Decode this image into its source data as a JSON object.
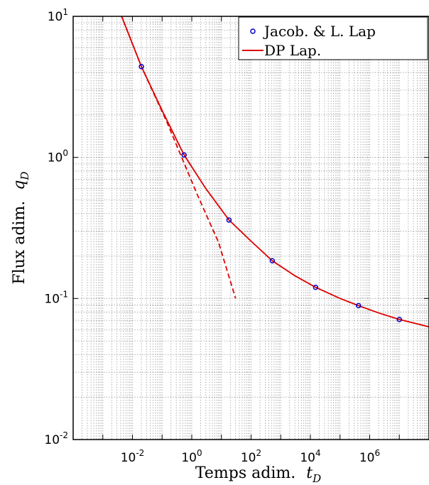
{
  "chart_data": {
    "type": "line",
    "xlabel": "Temps adim.",
    "xlabel_var": "t",
    "xlabel_sub": "D",
    "ylabel": "Flux adim.",
    "ylabel_var": "q",
    "ylabel_sub": "D",
    "xscale": "log",
    "yscale": "log",
    "xlim": [
      0.0001,
      100000000
    ],
    "ylim": [
      0.01,
      10
    ],
    "grid": true,
    "legend_position": "top-right",
    "x_ticks": [
      {
        "base": "10",
        "exp": "-2",
        "value": 0.01
      },
      {
        "base": "10",
        "exp": "0",
        "value": 1
      },
      {
        "base": "10",
        "exp": "2",
        "value": 100
      },
      {
        "base": "10",
        "exp": "4",
        "value": 10000
      },
      {
        "base": "10",
        "exp": "6",
        "value": 1000000
      }
    ],
    "y_ticks": [
      {
        "base": "10",
        "exp": "-2",
        "value": 0.01
      },
      {
        "base": "10",
        "exp": "-1",
        "value": 0.1
      },
      {
        "base": "10",
        "exp": "0",
        "value": 1
      },
      {
        "base": "10",
        "exp": "1",
        "value": 10
      }
    ],
    "series": [
      {
        "name": "Jacob. & L. Lap",
        "style": "markers",
        "marker": "circle",
        "color": "#0000cc",
        "points": [
          {
            "x": 0.02,
            "y": 4.4
          },
          {
            "x": 0.55,
            "y": 1.04
          },
          {
            "x": 18,
            "y": 0.36
          },
          {
            "x": 520,
            "y": 0.185
          },
          {
            "x": 15000,
            "y": 0.12
          },
          {
            "x": 420000,
            "y": 0.089
          },
          {
            "x": 10000000,
            "y": 0.071
          }
        ]
      },
      {
        "name": "DP Lap.",
        "style": "solid",
        "color": "#dd0000",
        "points": [
          {
            "x": 0.004,
            "y": 10.4
          },
          {
            "x": 0.02,
            "y": 4.4
          },
          {
            "x": 0.1,
            "y": 2.15
          },
          {
            "x": 0.55,
            "y": 1.04
          },
          {
            "x": 3,
            "y": 0.6
          },
          {
            "x": 18,
            "y": 0.36
          },
          {
            "x": 100,
            "y": 0.255
          },
          {
            "x": 520,
            "y": 0.185
          },
          {
            "x": 3000,
            "y": 0.145
          },
          {
            "x": 15000,
            "y": 0.12
          },
          {
            "x": 100000,
            "y": 0.1
          },
          {
            "x": 420000,
            "y": 0.089
          },
          {
            "x": 2000000,
            "y": 0.079
          },
          {
            "x": 10000000,
            "y": 0.071
          },
          {
            "x": 100000000,
            "y": 0.063
          }
        ]
      },
      {
        "name": "",
        "style": "dashed",
        "color": "#dd0000",
        "points": [
          {
            "x": 0.004,
            "y": 10.4
          },
          {
            "x": 0.02,
            "y": 4.4
          },
          {
            "x": 0.15,
            "y": 1.75
          },
          {
            "x": 1.5,
            "y": 0.55
          },
          {
            "x": 8,
            "y": 0.25
          },
          {
            "x": 30,
            "y": 0.1
          }
        ]
      }
    ]
  }
}
